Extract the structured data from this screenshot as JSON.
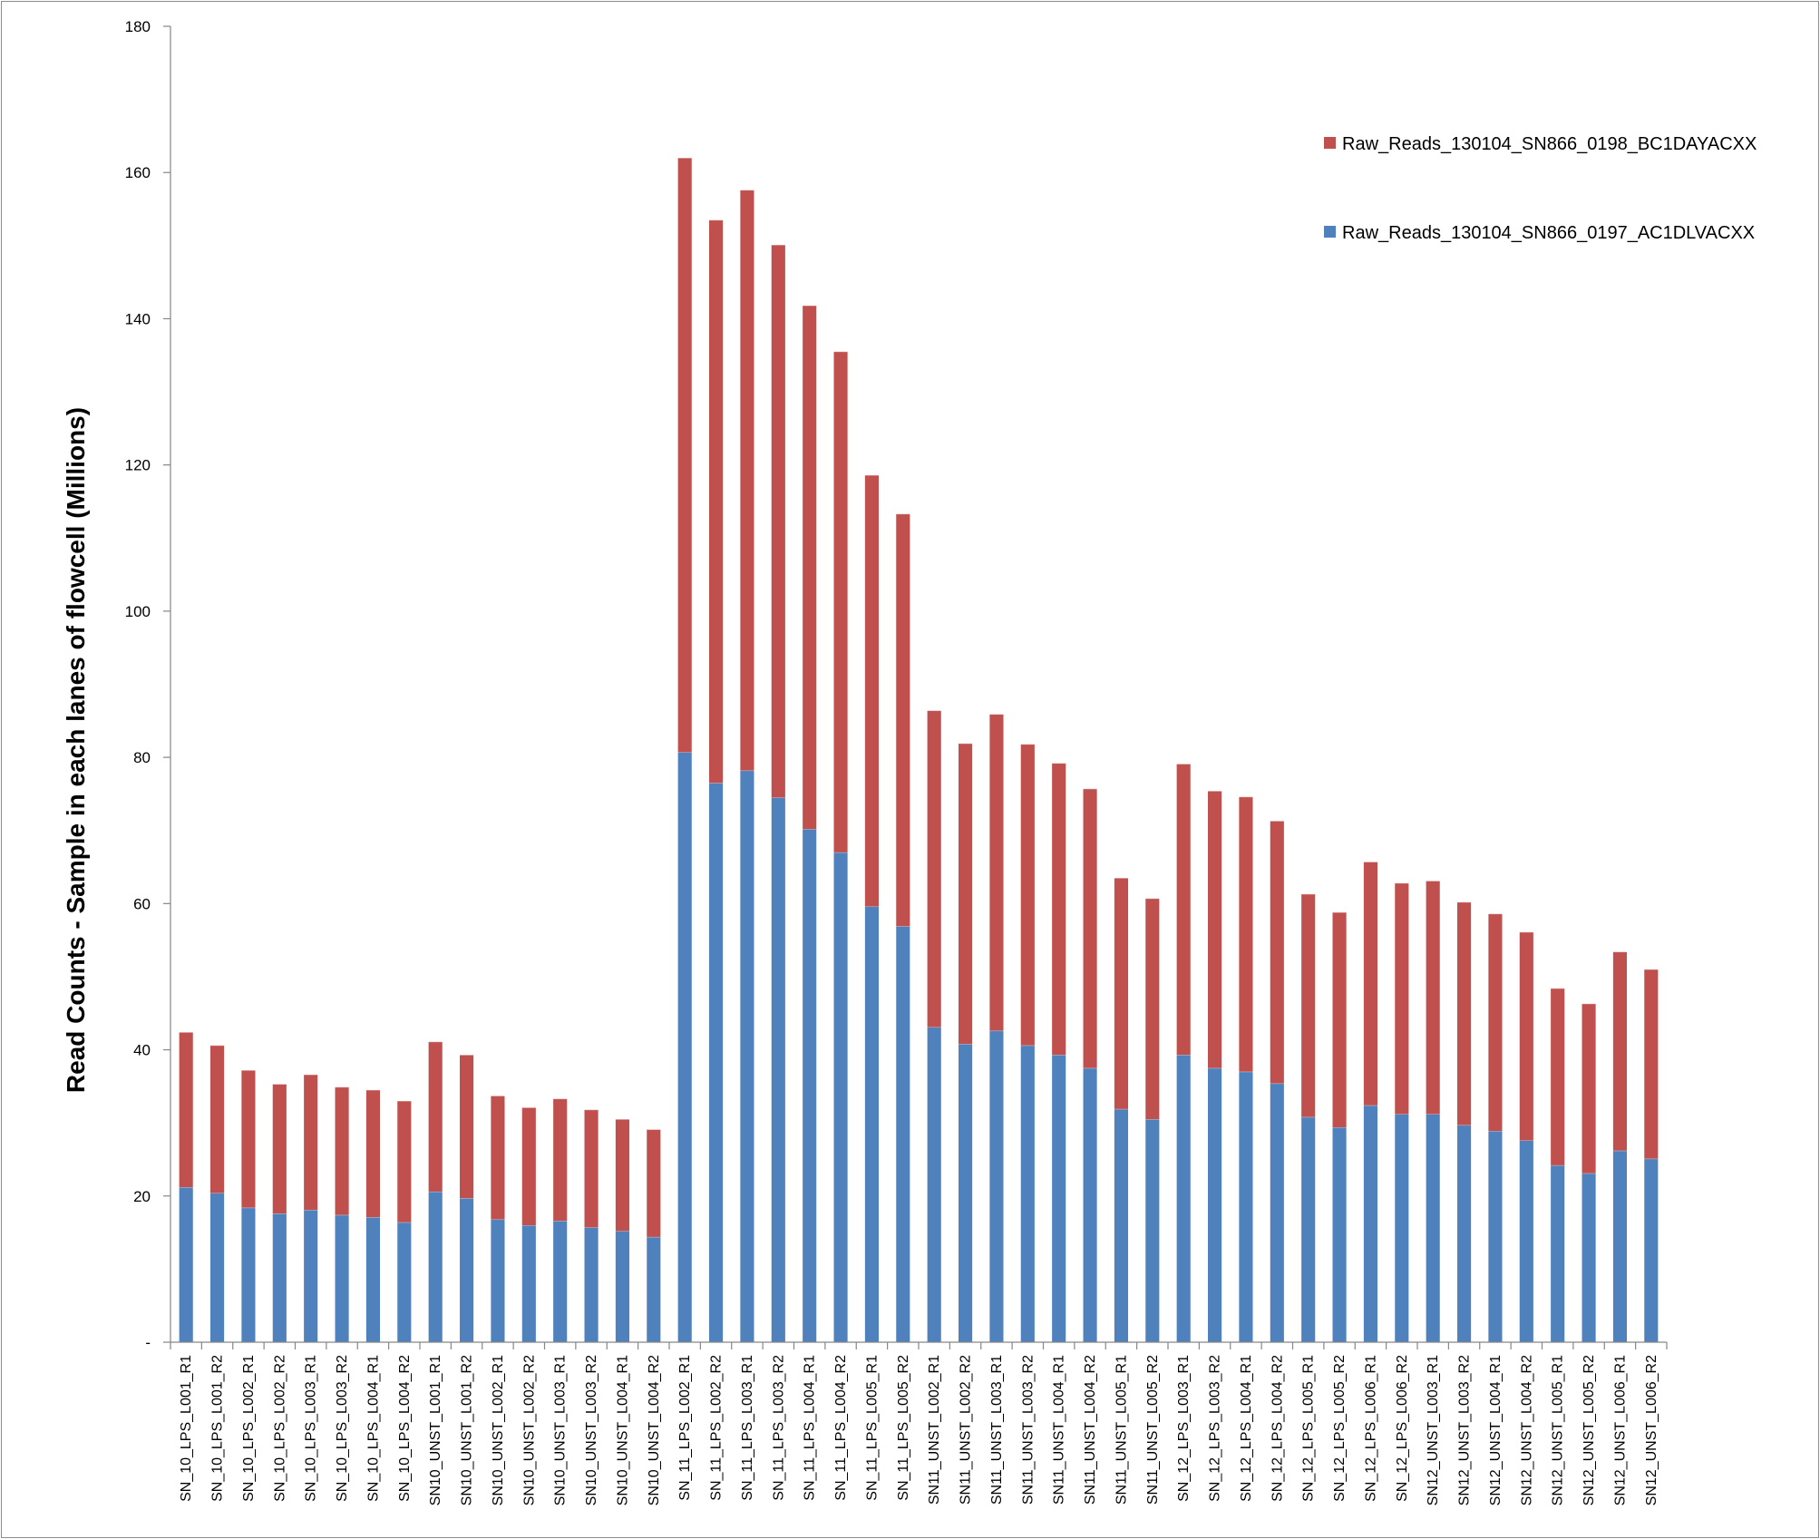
{
  "chart_data": {
    "type": "bar",
    "stacked": true,
    "title": "",
    "xlabel": "",
    "ylabel": "Read Counts - Sample in each lanes of flowcell (Millions)",
    "ylim": [
      0,
      180
    ],
    "yticks": [
      0,
      20,
      40,
      60,
      80,
      100,
      120,
      140,
      160,
      180
    ],
    "ytick_labels": [
      "-",
      "20",
      "40",
      "60",
      "80",
      "100",
      "120",
      "140",
      "160",
      "180"
    ],
    "grid": false,
    "legend_position": "top-right",
    "categories": [
      "SN_10_LPS_L001_R1",
      "SN_10_LPS_L001_R2",
      "SN_10_LPS_L002_R1",
      "SN_10_LPS_L002_R2",
      "SN_10_LPS_L003_R1",
      "SN_10_LPS_L003_R2",
      "SN_10_LPS_L004_R1",
      "SN_10_LPS_L004_R2",
      "SN10_UNST_L001_R1",
      "SN10_UNST_L001_R2",
      "SN10_UNST_L002_R1",
      "SN10_UNST_L002_R2",
      "SN10_UNST_L003_R1",
      "SN10_UNST_L003_R2",
      "SN10_UNST_L004_R1",
      "SN10_UNST_L004_R2",
      "SN_11_LPS_L002_R1",
      "SN_11_LPS_L002_R2",
      "SN_11_LPS_L003_R1",
      "SN_11_LPS_L003_R2",
      "SN_11_LPS_L004_R1",
      "SN_11_LPS_L004_R2",
      "SN_11_LPS_L005_R1",
      "SN_11_LPS_L005_R2",
      "SN11_UNST_L002_R1",
      "SN11_UNST_L002_R2",
      "SN11_UNST_L003_R1",
      "SN11_UNST_L003_R2",
      "SN11_UNST_L004_R1",
      "SN11_UNST_L004_R2",
      "SN11_UNST_L005_R1",
      "SN11_UNST_L005_R2",
      "SN_12_LPS_L003_R1",
      "SN_12_LPS_L003_R2",
      "SN_12_LPS_L004_R1",
      "SN_12_LPS_L004_R2",
      "SN_12_LPS_L005_R1",
      "SN_12_LPS_L005_R2",
      "SN_12_LPS_L006_R1",
      "SN_12_LPS_L006_R2",
      "SN12_UNST_L003_R1",
      "SN12_UNST_L003_R2",
      "SN12_UNST_L004_R1",
      "SN12_UNST_L004_R2",
      "SN12_UNST_L005_R1",
      "SN12_UNST_L005_R2",
      "SN12_UNST_L006_R1",
      "SN12_UNST_L006_R2"
    ],
    "series": [
      {
        "name": "Raw_Reads_130104_SN866_0197_AC1DLVACXX",
        "color": "#4f81bd",
        "values": [
          21.2,
          20.4,
          18.4,
          17.6,
          18.1,
          17.4,
          17.1,
          16.4,
          20.6,
          19.7,
          16.8,
          16.0,
          16.6,
          15.7,
          15.2,
          14.4,
          80.7,
          76.5,
          78.2,
          74.5,
          70.2,
          67.0,
          59.6,
          56.9,
          43.1,
          40.8,
          42.6,
          40.6,
          39.3,
          37.5,
          31.9,
          30.5,
          39.3,
          37.5,
          37.0,
          35.4,
          30.8,
          29.4,
          32.4,
          31.2,
          31.2,
          29.7,
          28.9,
          27.6,
          24.2,
          23.1,
          26.2,
          25.1
        ]
      },
      {
        "name": "Raw_Reads_130104_SN866_0198_BC1DAYACXX",
        "color": "#c0504d",
        "values": [
          21.2,
          20.2,
          18.8,
          17.7,
          18.5,
          17.5,
          17.4,
          16.6,
          20.5,
          19.6,
          16.9,
          16.1,
          16.7,
          16.1,
          15.3,
          14.7,
          81.3,
          77.0,
          79.4,
          75.6,
          71.6,
          68.5,
          59.0,
          56.4,
          43.3,
          41.1,
          43.3,
          41.2,
          39.9,
          38.2,
          31.6,
          30.2,
          39.8,
          37.9,
          37.6,
          35.9,
          30.5,
          29.4,
          33.3,
          31.6,
          31.9,
          30.5,
          29.7,
          28.5,
          24.2,
          23.2,
          27.2,
          25.9
        ]
      }
    ],
    "legend_order": [
      "Raw_Reads_130104_SN866_0198_BC1DAYACXX",
      "Raw_Reads_130104_SN866_0197_AC1DLVACXX"
    ]
  }
}
